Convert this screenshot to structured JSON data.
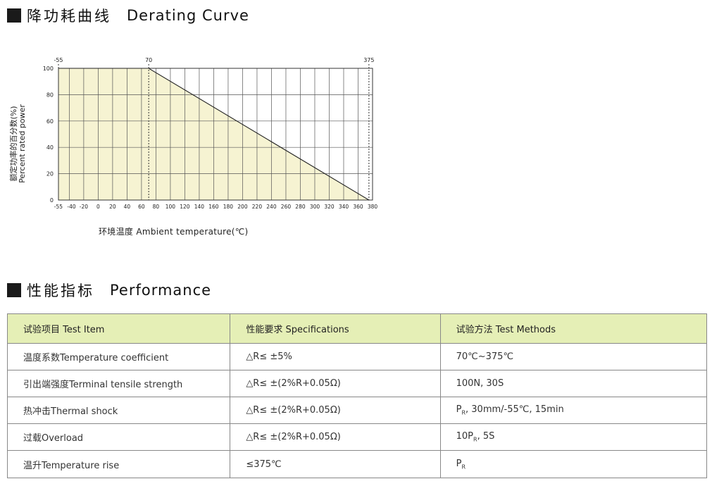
{
  "sections": {
    "derating": {
      "title_cn": "降功耗曲线",
      "title_en": "Derating Curve"
    },
    "performance": {
      "title_cn": "性能指标",
      "title_en": "Performance"
    }
  },
  "chart_data": {
    "type": "line",
    "title": "",
    "xlabel": "环境温度  Ambient  temperature(℃)",
    "ylabel_cn": "额定功率的百分数(%)",
    "ylabel_en": "Percent rated power",
    "xlim": [
      -55,
      380
    ],
    "ylim": [
      0,
      100
    ],
    "x_ticks": [
      "-55",
      "-40",
      "-20",
      "0",
      "20",
      "40",
      "60",
      "80",
      "100",
      "120",
      "140",
      "160",
      "180",
      "200",
      "220",
      "240",
      "260",
      "280",
      "300",
      "320",
      "340",
      "360",
      "380"
    ],
    "y_ticks": [
      "0",
      "20",
      "40",
      "60",
      "80",
      "100"
    ],
    "top_markers": [
      "-55",
      "70",
      "375"
    ],
    "series": [
      {
        "x": [
          -55,
          70,
          375
        ],
        "y": [
          100,
          100,
          0
        ]
      }
    ],
    "grid": true,
    "fill_color": "#f6f3d2"
  },
  "table": {
    "headers": [
      "试验项目 Test Item",
      "性能要求 Specifications",
      "试验方法 Test Methods"
    ],
    "rows": [
      [
        "温度系数Temperature coefficient",
        "△R≤ ±5%",
        "70℃~375℃"
      ],
      [
        "引出端强度Terminal tensile strength",
        "△R≤ ±(2%R+0.05Ω)",
        "100N, 30S"
      ],
      [
        "热冲击Thermal shock",
        "△R≤ ±(2%R+0.05Ω)",
        "P_R, 30mm/-55℃, 15min"
      ],
      [
        "过载Overload",
        "△R≤ ±(2%R+0.05Ω)",
        "10P_R, 5S"
      ],
      [
        "温升Temperature rise",
        "≤375℃",
        "P_R"
      ]
    ]
  }
}
